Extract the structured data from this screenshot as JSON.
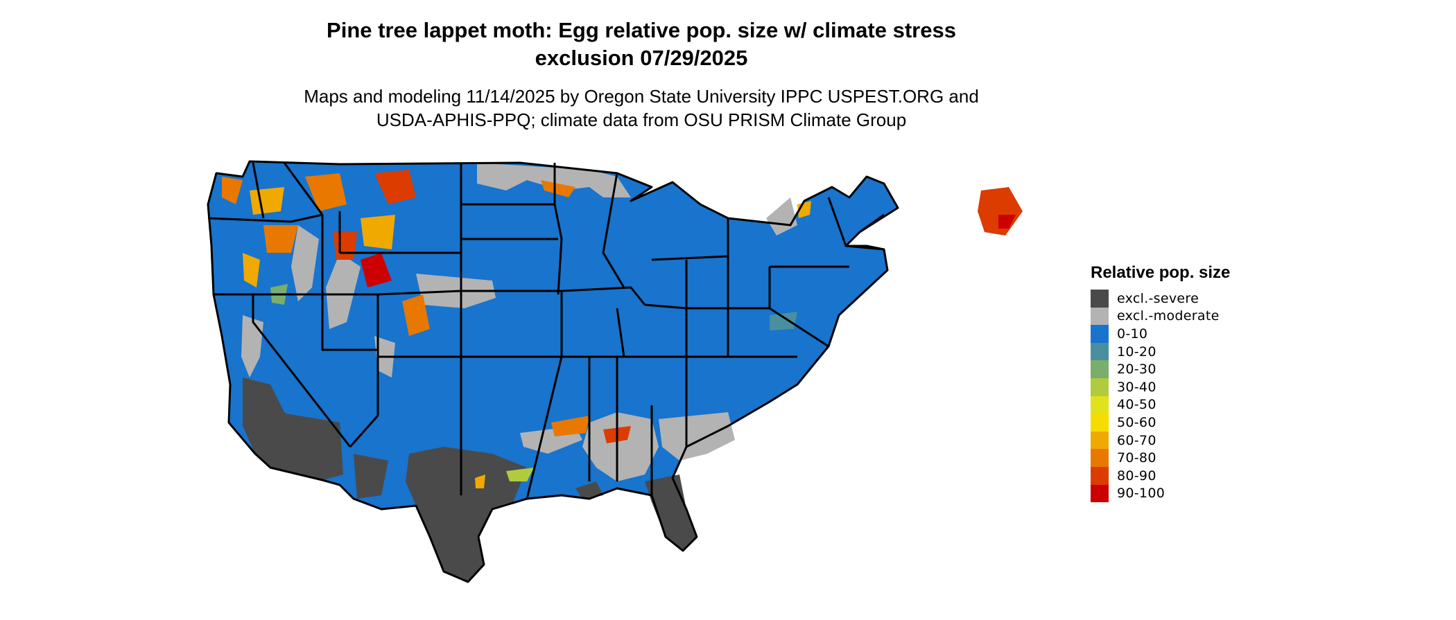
{
  "title": {
    "line1": "Pine tree lappet moth: Egg relative pop. size w/ climate stress",
    "line2": "exclusion 07/29/2025"
  },
  "subtitle": {
    "line1": "Maps and modeling 11/14/2025 by Oregon State University IPPC USPEST.ORG and",
    "line2": "USDA-APHIS-PPQ; climate data from OSU PRISM Climate Group"
  },
  "legend": {
    "title": "Relative pop. size",
    "items": [
      {
        "label": "excl.-severe",
        "color": "#4a4a4a"
      },
      {
        "label": "excl.-moderate",
        "color": "#b3b3b3"
      },
      {
        "label": "0-10",
        "color": "#1874cd"
      },
      {
        "label": "10-20",
        "color": "#4a8fa0"
      },
      {
        "label": "20-30",
        "color": "#7aae6c"
      },
      {
        "label": "30-40",
        "color": "#b0cc3e"
      },
      {
        "label": "40-50",
        "color": "#e2e21a"
      },
      {
        "label": "50-60",
        "color": "#f7dc00"
      },
      {
        "label": "60-70",
        "color": "#f0a900"
      },
      {
        "label": "70-80",
        "color": "#e87800"
      },
      {
        "label": "80-90",
        "color": "#dc3c00"
      },
      {
        "label": "90-100",
        "color": "#cc0000"
      }
    ]
  },
  "map": {
    "region": "conterminous-us",
    "state_border_color": "#000000",
    "ocean_color": "#ffffff"
  }
}
